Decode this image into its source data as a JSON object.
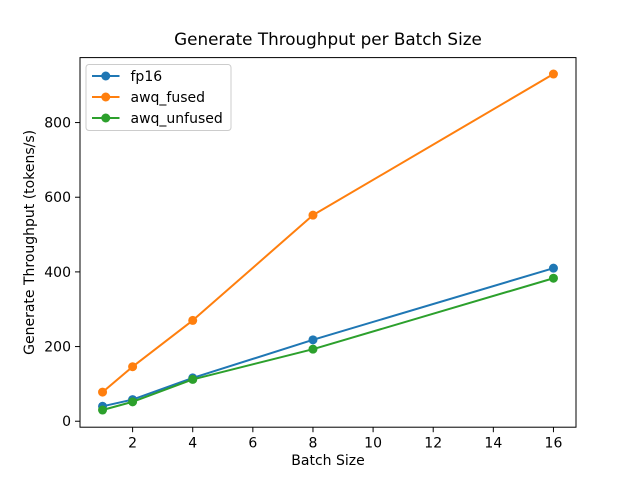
{
  "chart_data": {
    "type": "line",
    "title": "Generate Throughput per Batch Size",
    "xlabel": "Batch Size",
    "ylabel": "Generate Throughput (tokens/s)",
    "x": [
      1,
      2,
      4,
      8,
      16
    ],
    "series": [
      {
        "name": "fp16",
        "color": "#1f77b4",
        "values": [
          40,
          58,
          116,
          218,
          410
        ]
      },
      {
        "name": "awq_fused",
        "color": "#ff7f0e",
        "values": [
          78,
          146,
          270,
          552,
          930
        ]
      },
      {
        "name": "awq_unfused",
        "color": "#2ca02c",
        "values": [
          30,
          52,
          112,
          193,
          383
        ]
      }
    ],
    "xticks": [
      2,
      4,
      6,
      8,
      10,
      12,
      14,
      16
    ],
    "yticks": [
      0,
      200,
      400,
      600,
      800
    ],
    "xlim": [
      0.25,
      16.75
    ],
    "ylim": [
      -16,
      974
    ],
    "grid": false,
    "legend_position": "upper-left",
    "marker": "circle",
    "line_width": 2,
    "marker_radius": 4.5,
    "axis_color": "#000000",
    "legend_border_color": "#cccccc",
    "background": "#ffffff"
  }
}
